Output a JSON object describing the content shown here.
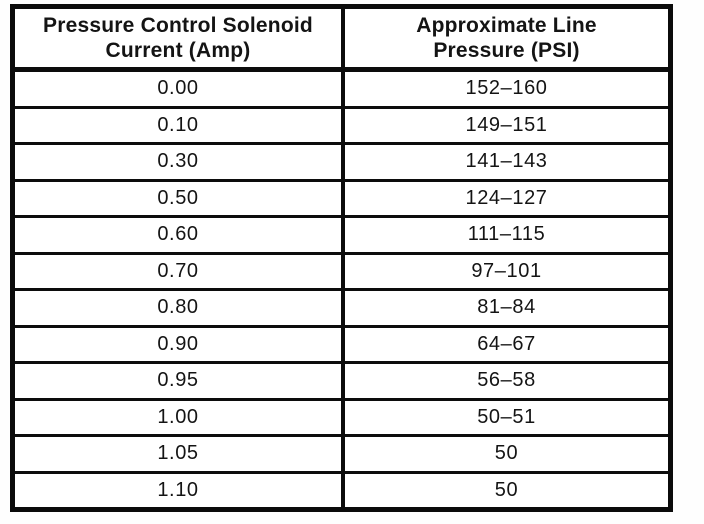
{
  "table": {
    "columns": [
      {
        "header_line1": "Pressure Control Solenoid",
        "header_line2": "Current (Amp)"
      },
      {
        "header_line1": "Approximate Line",
        "header_line2": "Pressure (PSI)"
      }
    ],
    "rows": [
      {
        "current_amp": "0.00",
        "line_pressure_psi": "152–160"
      },
      {
        "current_amp": "0.10",
        "line_pressure_psi": "149–151"
      },
      {
        "current_amp": "0.30",
        "line_pressure_psi": "141–143"
      },
      {
        "current_amp": "0.50",
        "line_pressure_psi": "124–127"
      },
      {
        "current_amp": "0.60",
        "line_pressure_psi": "111–115"
      },
      {
        "current_amp": "0.70",
        "line_pressure_psi": "97–101"
      },
      {
        "current_amp": "0.80",
        "line_pressure_psi": "81–84"
      },
      {
        "current_amp": "0.90",
        "line_pressure_psi": "64–67"
      },
      {
        "current_amp": "0.95",
        "line_pressure_psi": "56–58"
      },
      {
        "current_amp": "1.00",
        "line_pressure_psi": "50–51"
      },
      {
        "current_amp": "1.05",
        "line_pressure_psi": "50"
      },
      {
        "current_amp": "1.10",
        "line_pressure_psi": "50"
      }
    ],
    "colors": {
      "border": "#0b0b0b",
      "text": "#141414",
      "background": "#ffffff"
    }
  }
}
